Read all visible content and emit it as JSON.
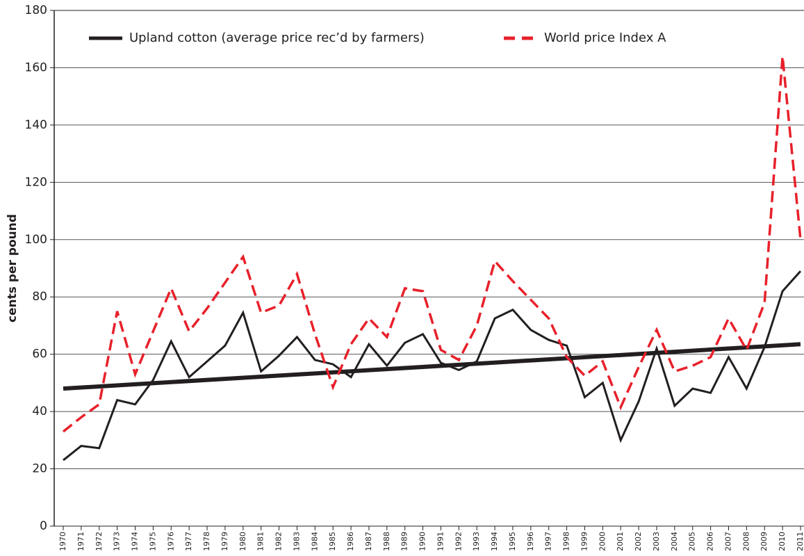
{
  "chart_data": {
    "type": "line",
    "ylabel": "cents per pound",
    "categories": [
      "1970",
      "1971",
      "1972",
      "1973",
      "1974",
      "1975",
      "1976",
      "1977",
      "1978",
      "1979",
      "1980",
      "1981",
      "1982",
      "1983",
      "1984",
      "1985",
      "1986",
      "1987",
      "1988",
      "1989",
      "1990",
      "1991",
      "1992",
      "1993",
      "1994",
      "1995",
      "1996",
      "1997",
      "1998",
      "1999",
      "2000",
      "2001",
      "2002",
      "2003",
      "2004",
      "2005",
      "2006",
      "2007",
      "2008",
      "2009",
      "2010",
      "2011"
    ],
    "series": [
      {
        "name": "Upland cotton (average price rec’d by farmers)",
        "color": "#231f20",
        "dash": false,
        "values": [
          23,
          28,
          27.2,
          44,
          42.5,
          51,
          64.5,
          52,
          57.5,
          63,
          74.5,
          54,
          59.5,
          66,
          58,
          56.5,
          52,
          63.5,
          56,
          64,
          67,
          57,
          54.5,
          57.5,
          72.5,
          75.5,
          68.5,
          65,
          63,
          45,
          50,
          30,
          43.5,
          62,
          42,
          48,
          46.5,
          59,
          48,
          62.5,
          82,
          89
        ]
      },
      {
        "name": "World price Index A",
        "color": "#e8202a",
        "dash": true,
        "values": [
          33,
          38,
          42.5,
          75,
          53,
          68,
          83,
          68,
          76,
          85,
          94,
          74.5,
          77,
          88,
          67,
          48.5,
          63.5,
          72.5,
          66,
          83,
          82,
          61.5,
          58,
          70,
          92.5,
          85.5,
          79,
          72.5,
          59,
          52.5,
          57.5,
          41.5,
          55.5,
          68.5,
          54,
          56,
          59,
          72.5,
          61.5,
          78,
          164,
          100
        ]
      }
    ],
    "trend": {
      "color": "#231f20",
      "values": [
        48,
        63.5
      ]
    },
    "ylim": [
      0,
      180
    ],
    "yticks": [
      0,
      20,
      40,
      60,
      80,
      100,
      120,
      140,
      160,
      180
    ],
    "grid": true
  }
}
